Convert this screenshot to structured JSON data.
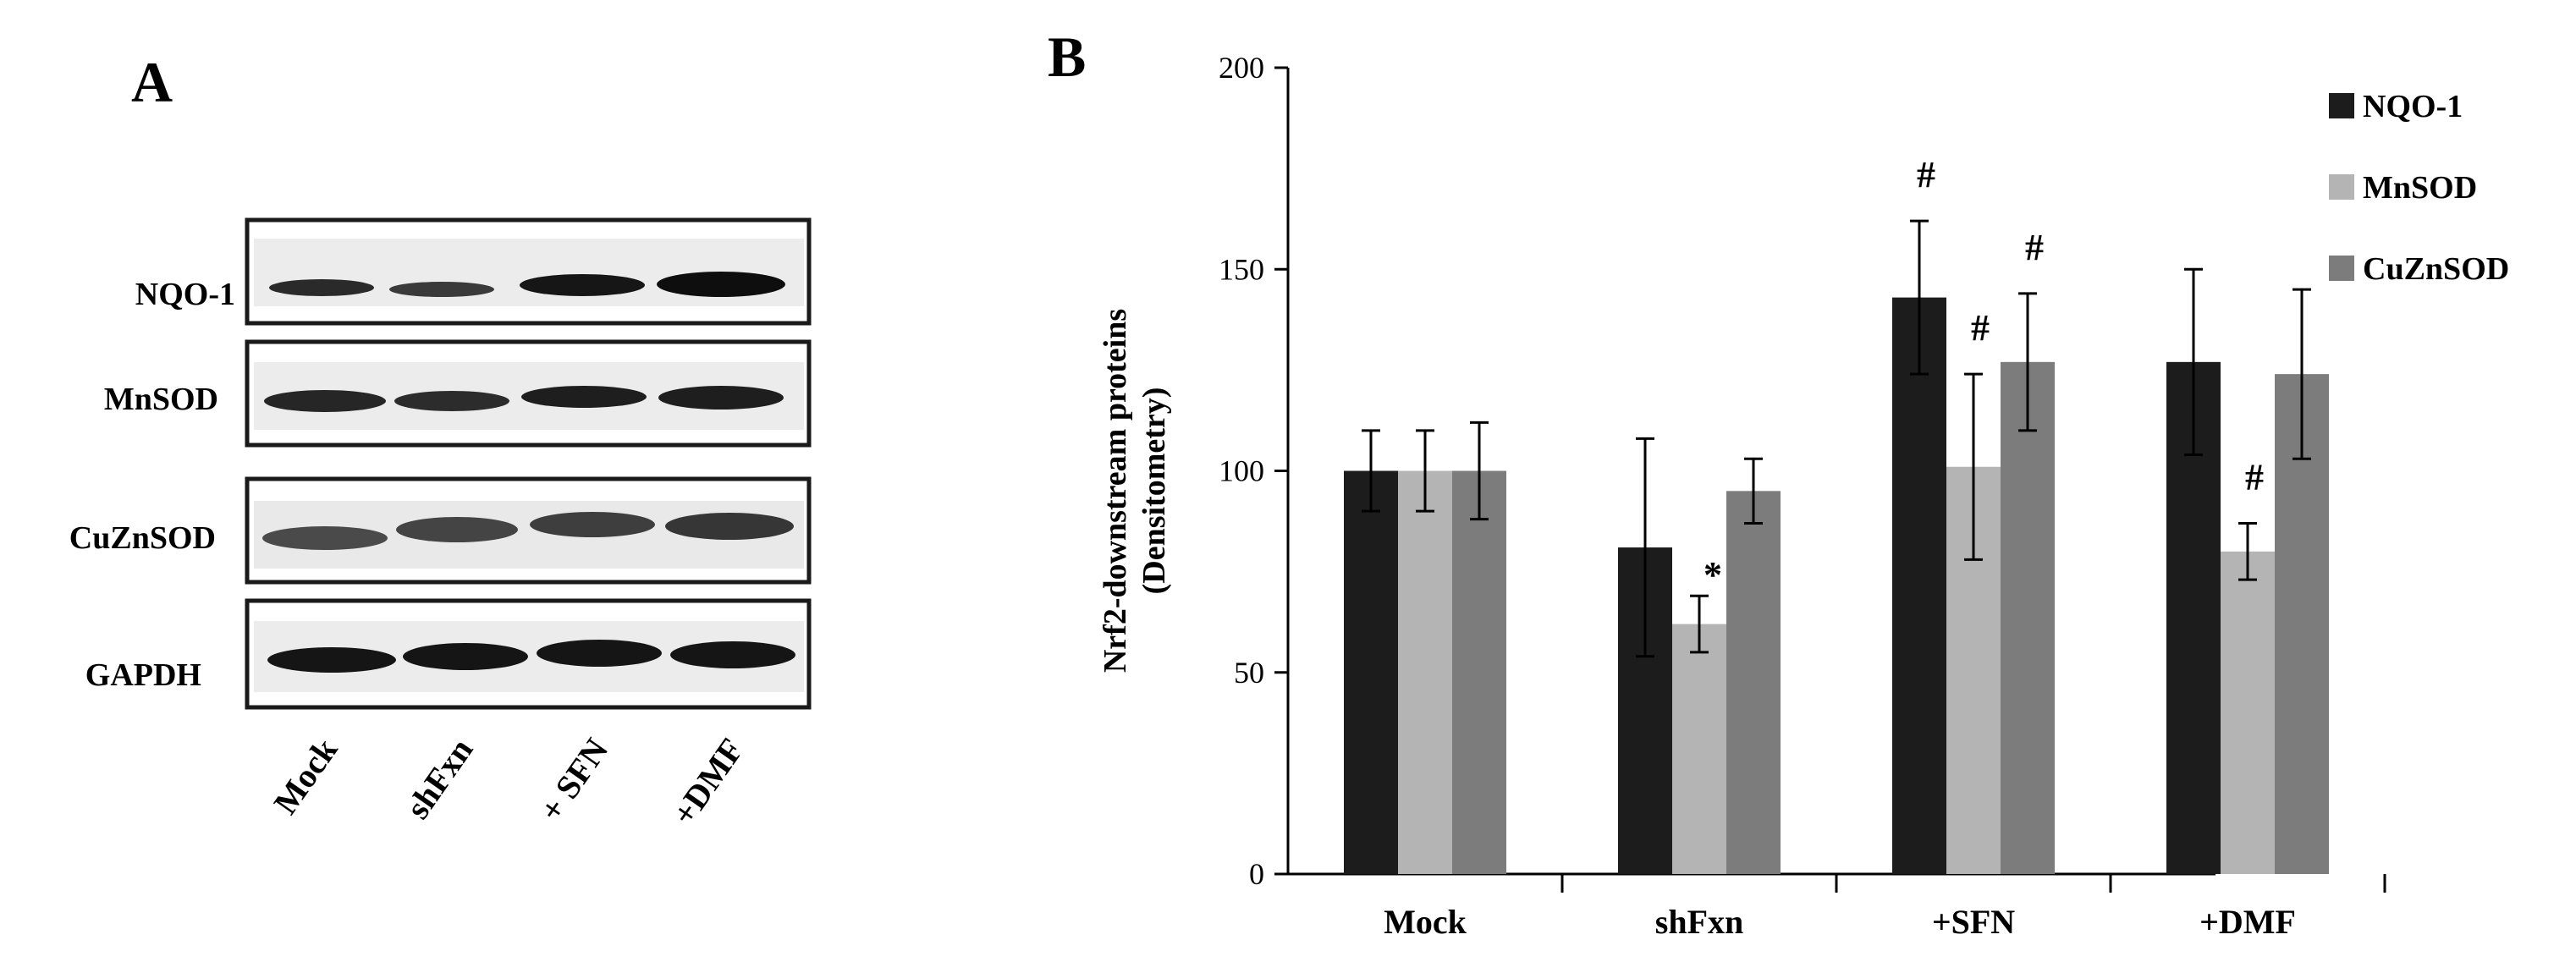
{
  "panel_a": {
    "letter": "A",
    "blots": [
      "NQO-1",
      "MnSOD",
      "CuZnSOD",
      "GAPDH"
    ],
    "lanes": [
      "Mock",
      "shFxn",
      "+ SFN",
      "+DMF"
    ]
  },
  "panel_b": {
    "letter": "B"
  },
  "chart_data": {
    "type": "bar",
    "title": "",
    "xlabel": "",
    "ylabel_line1": "Nrf2-downstream proteins",
    "ylabel_line2": "(Densitometry)",
    "ylim": [
      0,
      200
    ],
    "yticks": [
      0,
      50,
      100,
      150,
      200
    ],
    "categories": [
      "Mock",
      "shFxn",
      "+SFN",
      "+DMF"
    ],
    "legend_position": "top-right",
    "series": [
      {
        "name": "NQO-1",
        "color": "#1c1c1c",
        "values": [
          100,
          81,
          143,
          127
        ],
        "errors": [
          10,
          27,
          19,
          23
        ],
        "annotations": [
          "",
          "",
          "#",
          ""
        ]
      },
      {
        "name": "MnSOD",
        "color": "#b4b4b4",
        "values": [
          100,
          62,
          101,
          80
        ],
        "errors": [
          10,
          7,
          23,
          7
        ],
        "annotations": [
          "",
          "*",
          "#",
          "#"
        ]
      },
      {
        "name": "CuZnSOD",
        "color": "#7c7c7c",
        "values": [
          100,
          95,
          127,
          124
        ],
        "errors": [
          12,
          8,
          17,
          21
        ],
        "annotations": [
          "",
          "",
          "#",
          ""
        ]
      }
    ]
  }
}
